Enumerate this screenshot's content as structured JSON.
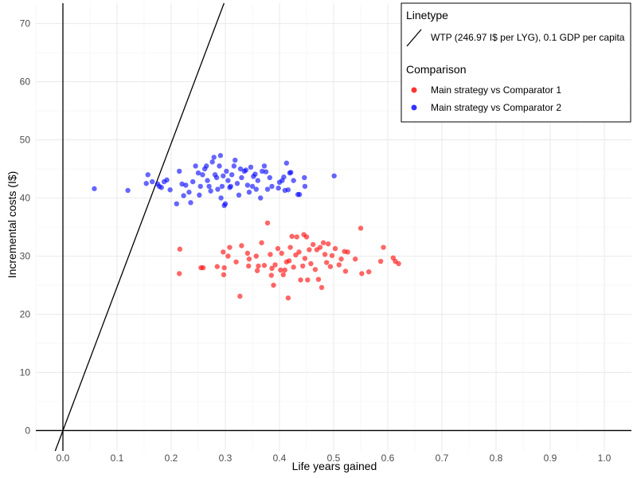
{
  "chart_data": {
    "type": "scatter",
    "title": "",
    "xlabel": "Life years gained",
    "ylabel": "Incremental costs (I$)",
    "xlim": [
      -0.05,
      1.05
    ],
    "ylim": [
      -3.5,
      73.5
    ],
    "x_ticks": [
      0.0,
      0.1,
      0.2,
      0.3,
      0.4,
      0.5,
      0.6,
      0.7,
      0.8,
      0.9,
      1.0
    ],
    "x_tick_labels": [
      "0.0",
      "0.1",
      "0.2",
      "0.3",
      "0.4",
      "0.5",
      "0.6",
      "0.7",
      "0.8",
      "0.9",
      "1.0"
    ],
    "y_ticks": [
      0,
      10,
      20,
      30,
      40,
      50,
      60,
      70
    ],
    "y_tick_labels": [
      "0",
      "10",
      "20",
      "30",
      "40",
      "50",
      "60",
      "70"
    ],
    "grid": true,
    "reference_lines": {
      "x": 0,
      "y": 0
    },
    "wtp_line": {
      "slope": 246.97,
      "intercept": 0
    },
    "legend": {
      "position": "top-right",
      "linetype_title": "Linetype",
      "linetype_label": "WTP (246.97 I$ per LYG), 0.1 GDP per capita",
      "comparison_title": "Comparison"
    },
    "series": [
      {
        "name": "Main strategy vs Comparator 1",
        "color": "#ff0000",
        "points": [
          [
            0.216,
            31.2
          ],
          [
            0.215,
            27.0
          ],
          [
            0.255,
            28.0
          ],
          [
            0.259,
            28.0
          ],
          [
            0.285,
            28.2
          ],
          [
            0.296,
            30.7
          ],
          [
            0.298,
            28.0
          ],
          [
            0.297,
            26.8
          ],
          [
            0.305,
            30.0
          ],
          [
            0.308,
            31.5
          ],
          [
            0.32,
            29.0
          ],
          [
            0.327,
            23.1
          ],
          [
            0.33,
            31.8
          ],
          [
            0.341,
            30.5
          ],
          [
            0.344,
            29.5
          ],
          [
            0.343,
            28.3
          ],
          [
            0.357,
            30.0
          ],
          [
            0.359,
            27.5
          ],
          [
            0.361,
            28.3
          ],
          [
            0.367,
            32.3
          ],
          [
            0.372,
            28.4
          ],
          [
            0.378,
            35.7
          ],
          [
            0.383,
            30.3
          ],
          [
            0.385,
            26.7
          ],
          [
            0.386,
            27.9
          ],
          [
            0.389,
            25.0
          ],
          [
            0.392,
            28.5
          ],
          [
            0.397,
            31.3
          ],
          [
            0.402,
            27.6
          ],
          [
            0.404,
            30.5
          ],
          [
            0.407,
            26.8
          ],
          [
            0.41,
            27.6
          ],
          [
            0.413,
            29.0
          ],
          [
            0.416,
            22.8
          ],
          [
            0.418,
            29.2
          ],
          [
            0.42,
            31.5
          ],
          [
            0.423,
            33.4
          ],
          [
            0.426,
            28.1
          ],
          [
            0.43,
            30.2
          ],
          [
            0.432,
            33.3
          ],
          [
            0.436,
            30.7
          ],
          [
            0.439,
            25.9
          ],
          [
            0.443,
            28.3
          ],
          [
            0.445,
            33.7
          ],
          [
            0.447,
            29.6
          ],
          [
            0.45,
            33.3
          ],
          [
            0.452,
            25.9
          ],
          [
            0.455,
            31.1
          ],
          [
            0.458,
            28.7
          ],
          [
            0.462,
            32.0
          ],
          [
            0.466,
            27.7
          ],
          [
            0.469,
            31.1
          ],
          [
            0.472,
            26.0
          ],
          [
            0.475,
            31.5
          ],
          [
            0.478,
            24.6
          ],
          [
            0.481,
            32.3
          ],
          [
            0.484,
            30.3
          ],
          [
            0.487,
            28.9
          ],
          [
            0.49,
            32.1
          ],
          [
            0.494,
            28.2
          ],
          [
            0.497,
            30.1
          ],
          [
            0.503,
            31.3
          ],
          [
            0.51,
            28.5
          ],
          [
            0.514,
            29.5
          ],
          [
            0.52,
            30.8
          ],
          [
            0.522,
            27.4
          ],
          [
            0.526,
            30.7
          ],
          [
            0.54,
            29.5
          ],
          [
            0.55,
            34.8
          ],
          [
            0.552,
            27.0
          ],
          [
            0.565,
            27.3
          ],
          [
            0.587,
            29.1
          ],
          [
            0.592,
            31.5
          ],
          [
            0.61,
            29.7
          ],
          [
            0.614,
            29.1
          ],
          [
            0.62,
            28.7
          ]
        ]
      },
      {
        "name": "Main strategy vs Comparator 2",
        "color": "#0000ff",
        "points": [
          [
            0.058,
            41.6
          ],
          [
            0.12,
            41.3
          ],
          [
            0.154,
            42.5
          ],
          [
            0.157,
            44.0
          ],
          [
            0.165,
            42.8
          ],
          [
            0.175,
            42.4
          ],
          [
            0.178,
            42.0
          ],
          [
            0.182,
            41.8
          ],
          [
            0.187,
            42.8
          ],
          [
            0.192,
            43.1
          ],
          [
            0.198,
            41.4
          ],
          [
            0.21,
            39.0
          ],
          [
            0.215,
            44.6
          ],
          [
            0.22,
            42.4
          ],
          [
            0.223,
            40.4
          ],
          [
            0.227,
            42.2
          ],
          [
            0.233,
            41.0
          ],
          [
            0.236,
            39.2
          ],
          [
            0.24,
            42.8
          ],
          [
            0.245,
            45.5
          ],
          [
            0.25,
            44.3
          ],
          [
            0.252,
            40.5
          ],
          [
            0.254,
            42.0
          ],
          [
            0.258,
            44.0
          ],
          [
            0.262,
            45.0
          ],
          [
            0.265,
            45.5
          ],
          [
            0.267,
            43.0
          ],
          [
            0.27,
            42.0
          ],
          [
            0.273,
            41.2
          ],
          [
            0.276,
            46.2
          ],
          [
            0.279,
            47.0
          ],
          [
            0.281,
            44.0
          ],
          [
            0.284,
            43.5
          ],
          [
            0.286,
            41.5
          ],
          [
            0.289,
            45.5
          ],
          [
            0.291,
            47.3
          ],
          [
            0.292,
            40.0
          ],
          [
            0.294,
            42.0
          ],
          [
            0.296,
            43.8
          ],
          [
            0.298,
            38.7
          ],
          [
            0.3,
            39.0
          ],
          [
            0.302,
            44.6
          ],
          [
            0.305,
            43.0
          ],
          [
            0.308,
            41.8
          ],
          [
            0.31,
            42.0
          ],
          [
            0.312,
            44.0
          ],
          [
            0.316,
            45.5
          ],
          [
            0.318,
            46.5
          ],
          [
            0.322,
            42.5
          ],
          [
            0.325,
            40.5
          ],
          [
            0.328,
            45.0
          ],
          [
            0.33,
            43.5
          ],
          [
            0.335,
            44.6
          ],
          [
            0.338,
            44.8
          ],
          [
            0.341,
            42.2
          ],
          [
            0.344,
            41.0
          ],
          [
            0.347,
            45.3
          ],
          [
            0.35,
            42.0
          ],
          [
            0.352,
            43.7
          ],
          [
            0.355,
            44.1
          ],
          [
            0.357,
            41.5
          ],
          [
            0.36,
            43.0
          ],
          [
            0.365,
            40.0
          ],
          [
            0.368,
            44.6
          ],
          [
            0.372,
            45.5
          ],
          [
            0.375,
            44.5
          ],
          [
            0.378,
            41.5
          ],
          [
            0.382,
            43.5
          ],
          [
            0.386,
            42.0
          ],
          [
            0.398,
            41.7
          ],
          [
            0.4,
            42.7
          ],
          [
            0.405,
            43.0
          ],
          [
            0.408,
            43.6
          ],
          [
            0.41,
            41.3
          ],
          [
            0.413,
            46.0
          ],
          [
            0.416,
            41.4
          ],
          [
            0.419,
            44.3
          ],
          [
            0.421,
            44.4
          ],
          [
            0.426,
            43.0
          ],
          [
            0.434,
            40.6
          ],
          [
            0.437,
            40.6
          ],
          [
            0.446,
            43.5
          ],
          [
            0.447,
            42.0
          ],
          [
            0.501,
            43.8
          ]
        ]
      }
    ]
  }
}
